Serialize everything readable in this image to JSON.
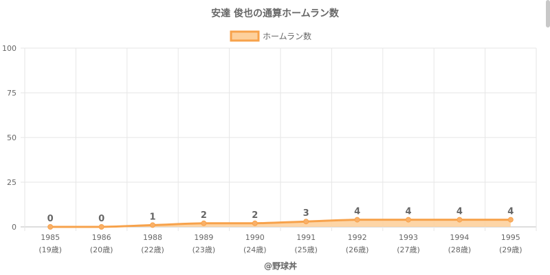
{
  "chart_data": {
    "type": "area",
    "title": "安達 俊也の通算ホームラン数",
    "legend": {
      "label": "ホームラン数",
      "position": "top"
    },
    "x": [
      "1985",
      "1986",
      "1988",
      "1989",
      "1990",
      "1991",
      "1992",
      "1993",
      "1994",
      "1995"
    ],
    "x_sub": [
      "(19歳)",
      "(20歳)",
      "(22歳)",
      "(23歳)",
      "(24歳)",
      "(25歳)",
      "(26歳)",
      "(27歳)",
      "(28歳)",
      "(29歳)"
    ],
    "series": [
      {
        "name": "ホームラン数",
        "values": [
          0,
          0,
          1,
          2,
          2,
          3,
          4,
          4,
          4,
          4
        ]
      }
    ],
    "ylim": [
      0,
      100
    ],
    "yticks": [
      0,
      25,
      50,
      75,
      100
    ],
    "grid": true,
    "footer": "@野球丼",
    "colors": {
      "line": "#f7a24b",
      "fill": "#fdd09c",
      "point": "#f9b068",
      "text": "#666666",
      "grid": "#e6e6e6"
    }
  }
}
